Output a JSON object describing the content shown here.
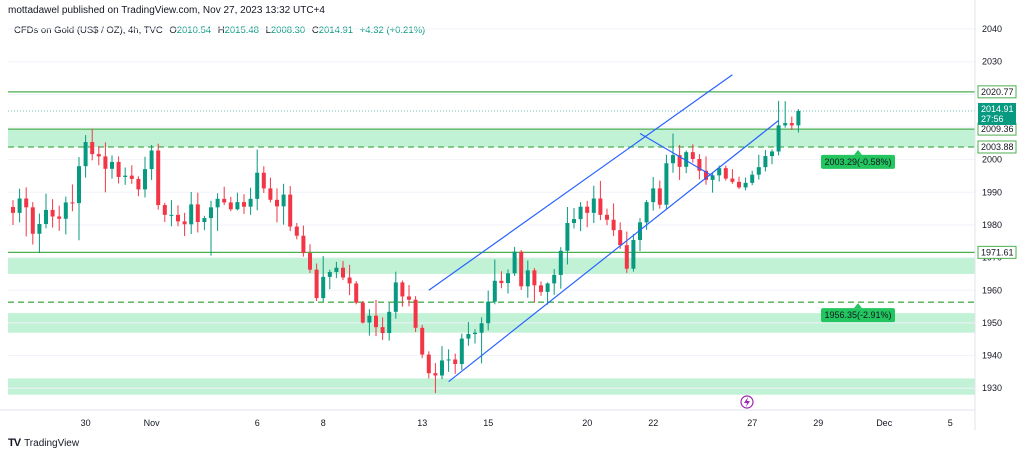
{
  "header": {
    "publisher": "mottadawel published on TradingView.com, Nov 27, 2023 13:32 UTC+4"
  },
  "legend": {
    "symbol": "CFDs on Gold (US$ / OZ), 4h, TVC",
    "open_label": "O",
    "open": "2010.54",
    "high_label": "H",
    "high": "2015.48",
    "low_label": "L",
    "low": "2008.30",
    "close_label": "C",
    "close": "2014.91",
    "change": "+4.32 (+0.21%)"
  },
  "brand": {
    "name": "TradingView",
    "logo": "TV"
  },
  "colors": {
    "up": "#089981",
    "down": "#f23645",
    "zone_fill": "#b7f0cf",
    "zone_line": "#4caf50",
    "channel": "#2962ff",
    "callout": "#22c55e"
  },
  "chart_data": {
    "type": "candlestick",
    "title": "",
    "xlabel": "",
    "ylabel": "",
    "ylim": [
      1927,
      2044
    ],
    "y_ticks": [
      1930,
      1940,
      1950,
      1960,
      1970,
      1980,
      1990,
      2000,
      2010,
      2020,
      2030,
      2040
    ],
    "x_ticks": [
      {
        "label": "30",
        "i": 11
      },
      {
        "label": "Nov",
        "i": 21
      },
      {
        "label": "6",
        "i": 37
      },
      {
        "label": "8",
        "i": 47
      },
      {
        "label": "13",
        "i": 62
      },
      {
        "label": "15",
        "i": 72
      },
      {
        "label": "20",
        "i": 87
      },
      {
        "label": "22",
        "i": 97
      },
      {
        "label": "27",
        "i": 112
      },
      {
        "label": "29",
        "i": 122
      },
      {
        "label": "Dec",
        "i": 132
      },
      {
        "label": "5",
        "i": 142
      }
    ],
    "candles": [
      [
        1985.5,
        1987.6,
        1980.0,
        1983.7
      ],
      [
        1983.7,
        1991.1,
        1980.8,
        1988.1
      ],
      [
        1988.1,
        1991.5,
        1976.5,
        1985.4
      ],
      [
        1985.4,
        1987.0,
        1974.0,
        1977.3
      ],
      [
        1977.3,
        1983.5,
        1971.4,
        1980.3
      ],
      [
        1980.3,
        1989.6,
        1979.0,
        1984.6
      ],
      [
        1984.6,
        1987.9,
        1979.2,
        1982.6
      ],
      [
        1982.6,
        1985.9,
        1978.2,
        1981.9
      ],
      [
        1981.9,
        1988.7,
        1977.1,
        1986.9
      ],
      [
        1986.9,
        1992.4,
        1984.2,
        1986.7
      ],
      [
        1986.7,
        2000.8,
        1975.3,
        1998.0
      ],
      [
        1998.0,
        2007.5,
        1994.5,
        2005.4
      ],
      [
        2005.4,
        2009.4,
        1999.8,
        2001.7
      ],
      [
        2001.7,
        2004.1,
        1998.3,
        2001.0
      ],
      [
        2001.0,
        2005.3,
        1990.0,
        1997.2
      ],
      [
        1997.2,
        2001.3,
        1994.2,
        1999.3
      ],
      [
        1999.3,
        2001.0,
        1992.7,
        1994.7
      ],
      [
        1994.7,
        1997.6,
        1992.3,
        1995.1
      ],
      [
        1995.1,
        1998.3,
        1992.6,
        1994.1
      ],
      [
        1994.1,
        1994.9,
        1988.8,
        1990.9
      ],
      [
        1990.9,
        2000.9,
        1988.4,
        1997.1
      ],
      [
        1997.1,
        2004.5,
        1993.8,
        2002.8
      ],
      [
        2002.8,
        2004.9,
        1984.7,
        1986.1
      ],
      [
        1986.1,
        1986.8,
        1980.9,
        1983.1
      ],
      [
        1983.1,
        1987.6,
        1979.6,
        1983.1
      ],
      [
        1983.1,
        1986.0,
        1979.6,
        1981.1
      ],
      [
        1981.1,
        1983.7,
        1976.6,
        1980.2
      ],
      [
        1980.2,
        1990.1,
        1977.2,
        1986.3
      ],
      [
        1986.3,
        1989.9,
        1977.7,
        1980.9
      ],
      [
        1980.9,
        1982.8,
        1978.4,
        1982.1
      ],
      [
        1982.1,
        1987.4,
        1970.6,
        1985.4
      ],
      [
        1985.4,
        1989.7,
        1978.2,
        1988.0
      ],
      [
        1988.0,
        1991.7,
        1986.1,
        1986.9
      ],
      [
        1986.9,
        1988.6,
        1984.2,
        1984.8
      ],
      [
        1984.8,
        1989.9,
        1984.5,
        1987.0
      ],
      [
        1987.0,
        1989.4,
        1983.4,
        1985.6
      ],
      [
        1985.6,
        1991.4,
        1983.1,
        1988.0
      ],
      [
        1988.0,
        2003.1,
        1984.5,
        1996.0
      ],
      [
        1996.0,
        1998.0,
        1989.8,
        1991.2
      ],
      [
        1991.2,
        1994.5,
        1986.9,
        1987.7
      ],
      [
        1987.7,
        1991.2,
        1980.8,
        1985.7
      ],
      [
        1985.7,
        1992.6,
        1980.1,
        1989.3
      ],
      [
        1989.3,
        1991.9,
        1978.1,
        1979.5
      ],
      [
        1979.5,
        1980.6,
        1975.6,
        1976.7
      ],
      [
        1976.7,
        1979.8,
        1970.3,
        1971.4
      ],
      [
        1971.4,
        1974.1,
        1965.3,
        1966.3
      ],
      [
        1966.3,
        1968.2,
        1956.7,
        1957.6
      ],
      [
        1957.6,
        1970.5,
        1956.5,
        1964.1
      ],
      [
        1964.1,
        1966.3,
        1960.3,
        1965.6
      ],
      [
        1965.6,
        1968.7,
        1963.7,
        1966.9
      ],
      [
        1966.9,
        1969.0,
        1963.1,
        1963.9
      ],
      [
        1963.9,
        1967.8,
        1958.5,
        1962.1
      ],
      [
        1962.1,
        1962.8,
        1955.7,
        1956.2
      ],
      [
        1956.2,
        1956.7,
        1949.8,
        1950.1
      ],
      [
        1950.1,
        1954.2,
        1946.1,
        1952.2
      ],
      [
        1952.2,
        1957.0,
        1946.0,
        1948.7
      ],
      [
        1948.7,
        1951.7,
        1944.8,
        1946.9
      ],
      [
        1946.9,
        1956.1,
        1944.6,
        1953.4
      ],
      [
        1953.4,
        1965.7,
        1951.3,
        1962.4
      ],
      [
        1962.4,
        1963.0,
        1955.0,
        1958.1
      ],
      [
        1958.1,
        1961.6,
        1955.1,
        1957.1
      ],
      [
        1957.1,
        1958.2,
        1947.2,
        1948.5
      ],
      [
        1948.5,
        1949.4,
        1939.2,
        1940.3
      ],
      [
        1940.3,
        1941.3,
        1933.0,
        1934.6
      ],
      [
        1934.6,
        1937.7,
        1928.5,
        1933.9
      ],
      [
        1933.9,
        1942.9,
        1932.8,
        1938.5
      ],
      [
        1938.5,
        1941.9,
        1935.0,
        1938.8
      ],
      [
        1938.8,
        1940.6,
        1934.4,
        1937.4
      ],
      [
        1937.4,
        1946.7,
        1935.6,
        1945.2
      ],
      [
        1945.2,
        1950.3,
        1943.0,
        1946.6
      ],
      [
        1946.6,
        1948.1,
        1943.7,
        1947.0
      ],
      [
        1947.0,
        1951.7,
        1937.6,
        1949.9
      ],
      [
        1949.9,
        1959.9,
        1947.7,
        1956.5
      ],
      [
        1956.5,
        1969.4,
        1955.7,
        1962.9
      ],
      [
        1962.9,
        1965.8,
        1960.6,
        1962.2
      ],
      [
        1962.2,
        1966.4,
        1959.0,
        1965.2
      ],
      [
        1965.2,
        1973.3,
        1964.4,
        1971.8
      ],
      [
        1971.8,
        1972.3,
        1960.1,
        1961.2
      ],
      [
        1961.2,
        1969.1,
        1957.7,
        1966.1
      ],
      [
        1966.1,
        1966.8,
        1956.2,
        1961.5
      ],
      [
        1961.5,
        1962.7,
        1958.3,
        1959.5
      ],
      [
        1959.5,
        1962.4,
        1955.6,
        1962.1
      ],
      [
        1962.1,
        1966.5,
        1958.6,
        1964.7
      ],
      [
        1964.7,
        1973.2,
        1960.5,
        1972.1
      ],
      [
        1972.1,
        1985.5,
        1967.9,
        1980.6
      ],
      [
        1980.6,
        1985.2,
        1978.9,
        1981.8
      ],
      [
        1981.8,
        1987.0,
        1978.1,
        1985.6
      ],
      [
        1985.6,
        1987.4,
        1979.3,
        1983.7
      ],
      [
        1983.7,
        1992.0,
        1980.6,
        1988.1
      ],
      [
        1988.1,
        1993.5,
        1981.5,
        1983.1
      ],
      [
        1983.1,
        1985.0,
        1979.9,
        1981.6
      ],
      [
        1981.6,
        1986.6,
        1976.6,
        1978.4
      ],
      [
        1978.4,
        1980.8,
        1972.7,
        1973.8
      ],
      [
        1973.8,
        1978.0,
        1965.3,
        1966.6
      ],
      [
        1966.6,
        1977.2,
        1965.7,
        1975.4
      ],
      [
        1975.4,
        1982.1,
        1972.0,
        1980.8
      ],
      [
        1980.8,
        1987.6,
        1978.5,
        1987.0
      ],
      [
        1987.0,
        1994.7,
        1984.4,
        1991.2
      ],
      [
        1991.2,
        1993.6,
        1985.0,
        1986.2
      ],
      [
        1986.2,
        2001.5,
        1984.8,
        1998.9
      ],
      [
        1998.9,
        2008.0,
        1996.0,
        2001.4
      ],
      [
        2001.4,
        2004.5,
        1993.8,
        1997.8
      ],
      [
        1997.8,
        2002.8,
        1995.9,
        2002.3
      ],
      [
        2002.3,
        2004.7,
        1999.1,
        2000.2
      ],
      [
        2000.2,
        2001.7,
        1994.0,
        1996.6
      ],
      [
        1996.6,
        2001.0,
        1992.3,
        1993.8
      ],
      [
        1993.8,
        1995.9,
        1989.9,
        1995.2
      ],
      [
        1995.2,
        1998.2,
        1993.3,
        1997.4
      ],
      [
        1997.4,
        1998.2,
        1993.6,
        1994.2
      ],
      [
        1994.2,
        1997.1,
        1992.6,
        1993.2
      ],
      [
        1993.2,
        1994.8,
        1991.0,
        1991.5
      ],
      [
        1991.5,
        1994.5,
        1990.6,
        1992.9
      ],
      [
        1992.9,
        1996.6,
        1992.2,
        1995.4
      ],
      [
        1995.4,
        2001.5,
        1993.9,
        1997.7
      ],
      [
        1997.7,
        2003.0,
        1996.4,
        2001.1
      ],
      [
        2001.1,
        2003.1,
        1998.6,
        2002.5
      ],
      [
        2002.5,
        2018.0,
        2001.3,
        2010.5
      ],
      [
        2010.5,
        2017.9,
        2009.8,
        2011.2
      ],
      [
        2011.2,
        2013.2,
        2009.1,
        2010.5
      ],
      [
        2010.5,
        2015.5,
        2008.3,
        2014.9
      ]
    ],
    "levels": [
      {
        "value": 2020.77,
        "label": "2020.77",
        "style": "solid"
      },
      {
        "value": 2009.36,
        "label": "2009.36",
        "style": "solid"
      },
      {
        "value": 2003.88,
        "label": "2003.88",
        "style": "dashed"
      },
      {
        "value": 1971.61,
        "label": "1971.61",
        "style": "solid"
      },
      {
        "value": 1956.35,
        "label": "",
        "style": "dashed"
      }
    ],
    "zones": [
      [
        2003.88,
        2009.36
      ],
      [
        1965.0,
        1970.0
      ],
      [
        1947.0,
        1953.0
      ],
      [
        1928.0,
        1933.0
      ]
    ],
    "channel_lines": [
      [
        {
          "i": 63,
          "y": 1960.0
        },
        {
          "i": 109,
          "y": 2026.0
        }
      ],
      [
        {
          "i": 66,
          "y": 1932.0
        },
        {
          "i": 116,
          "y": 2012.0
        }
      ],
      [
        {
          "i": 95,
          "y": 2008.0
        },
        {
          "i": 106,
          "y": 1995.0
        }
      ]
    ],
    "callouts": [
      {
        "value": 2003.29,
        "label": "2003.29(-0.58%)"
      },
      {
        "value": 1956.35,
        "label": "1956.35(-2.91%)"
      }
    ],
    "last_price": {
      "value": 2014.91,
      "label": "2014.91",
      "countdown": "27:56"
    }
  }
}
